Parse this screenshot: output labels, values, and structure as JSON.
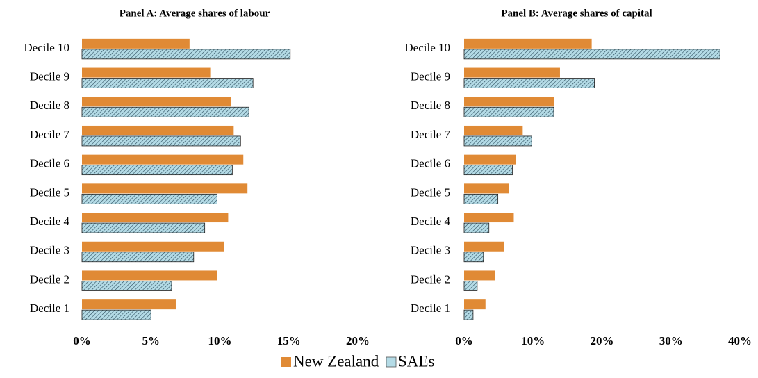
{
  "chart_data": [
    {
      "type": "bar",
      "orientation": "horizontal",
      "title": "Panel A: Average shares of labour",
      "categories": [
        "Decile 1",
        "Decile 2",
        "Decile 3",
        "Decile 4",
        "Decile 5",
        "Decile 6",
        "Decile 7",
        "Decile 8",
        "Decile 9",
        "Decile 10"
      ],
      "series": [
        {
          "name": "New Zealand",
          "color": "#e08a35",
          "values": [
            6.8,
            9.8,
            10.3,
            10.6,
            12.0,
            11.7,
            11.0,
            10.8,
            9.3,
            7.8
          ]
        },
        {
          "name": "SAEs",
          "color": "#b4dbe6",
          "hatch": true,
          "values": [
            5.0,
            6.5,
            8.1,
            8.9,
            9.8,
            10.9,
            11.5,
            12.1,
            12.4,
            15.1
          ]
        }
      ],
      "xlim": [
        0,
        20
      ],
      "xticks": [
        {
          "value": 0,
          "label": "0%"
        },
        {
          "value": 5,
          "label": "5%"
        },
        {
          "value": 10,
          "label": "10%"
        },
        {
          "value": 15,
          "label": "15%"
        },
        {
          "value": 20,
          "label": "20%"
        }
      ]
    },
    {
      "type": "bar",
      "orientation": "horizontal",
      "title": "Panel B: Average shares of capital",
      "categories": [
        "Decile 1",
        "Decile 2",
        "Decile 3",
        "Decile 4",
        "Decile 5",
        "Decile 6",
        "Decile 7",
        "Decile 8",
        "Decile 9",
        "Decile 10"
      ],
      "series": [
        {
          "color": "#e08a35",
          "values": [
            3.1,
            4.5,
            5.8,
            7.2,
            6.5,
            7.5,
            8.5,
            13.0,
            13.9,
            18.5
          ]
        },
        {
          "color": "#b4dbe6",
          "hatch": true,
          "values": [
            1.3,
            1.9,
            2.8,
            3.6,
            4.9,
            7.0,
            9.8,
            13.0,
            18.9,
            37.1
          ]
        }
      ],
      "xlim": [
        0,
        40
      ],
      "xticks": [
        {
          "value": 0,
          "label": "0%"
        },
        {
          "value": 10,
          "label": "10%"
        },
        {
          "value": 20,
          "label": "20%"
        },
        {
          "value": 30,
          "label": "30%"
        },
        {
          "value": 40,
          "label": "40%"
        }
      ]
    }
  ]
}
